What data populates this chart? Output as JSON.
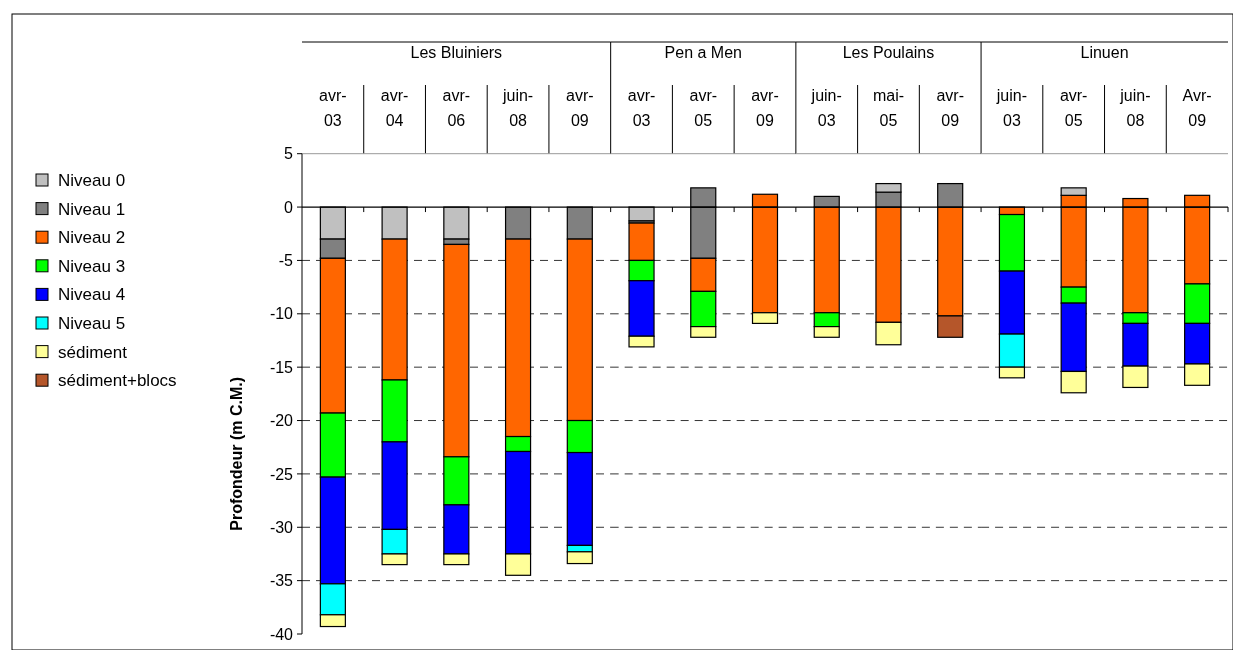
{
  "chart_data": [
    {
      "type": "bar",
      "title": "Les Bluiniers",
      "categories": [
        "avr-03",
        "avr-04",
        "avr-06",
        "juin-08",
        "avr-09"
      ],
      "stacked": true,
      "ylabel": "Profondeur (m C.M.)",
      "ylim": [
        -40,
        5
      ],
      "yticks": [
        -40,
        -35,
        -30,
        -25,
        -20,
        -15,
        -10,
        -5,
        0,
        5
      ],
      "grid": "y",
      "legend": "left",
      "series": [
        {
          "name": "Niveau 0",
          "color": "#c0c0c0",
          "values": [
            -3.0,
            -3.0,
            -3.0,
            null,
            null
          ]
        },
        {
          "name": "Niveau 1",
          "color": "#808080",
          "values": [
            -1.8,
            null,
            -0.5,
            -3.0,
            -3.0
          ]
        },
        {
          "name": "Niveau 2",
          "color": "#ff6600",
          "values": [
            -14.5,
            -13.2,
            -19.9,
            -18.5,
            -17.0
          ]
        },
        {
          "name": "Niveau 3",
          "color": "#00ff00",
          "values": [
            -6.0,
            -5.8,
            -4.5,
            -1.4,
            -3.0
          ]
        },
        {
          "name": "Niveau 4",
          "color": "#0000ff",
          "values": [
            -10.0,
            -8.2,
            -4.6,
            -9.6,
            -8.7
          ]
        },
        {
          "name": "Niveau 5",
          "color": "#00ffff",
          "values": [
            -2.9,
            -2.3,
            null,
            null,
            -0.6
          ]
        },
        {
          "name": "sédiment",
          "color": "#ffff99",
          "values": [
            -1.1,
            -1.0,
            -1.0,
            -2.0,
            -1.1
          ]
        },
        {
          "name": "sédiment+blocs",
          "color": "#b5562a",
          "values": [
            null,
            null,
            null,
            null,
            null
          ]
        }
      ]
    },
    {
      "type": "bar",
      "title": "Pen a Men",
      "categories": [
        "avr-03",
        "avr-05",
        "avr-09"
      ],
      "stacked": true,
      "ylim": [
        -40,
        5
      ],
      "yticks": [
        -40,
        -35,
        -30,
        -25,
        -20,
        -15,
        -10,
        -5,
        0,
        5
      ],
      "grid": "y",
      "tick_labels": "x",
      "series": [
        {
          "color": "#c0c0c0",
          "values": [
            -1.3,
            null,
            null
          ]
        },
        {
          "color": "#808080",
          "values": [
            -0.2,
            -4.8,
            null
          ]
        },
        {
          "color": "#ff6600",
          "values": [
            -3.5,
            -3.1,
            -9.9
          ]
        },
        {
          "color": "#00ff00",
          "values": [
            -1.9,
            -3.3,
            null
          ]
        },
        {
          "color": "#0000ff",
          "values": [
            -5.2,
            null,
            null
          ]
        },
        {
          "color": "#ffff99",
          "values": [
            -1.0,
            -1.0,
            -1.0
          ]
        },
        {
          "color": "#808080",
          "values": [
            null,
            1.8,
            null
          ]
        },
        {
          "color": "#ff6600",
          "values": [
            null,
            null,
            1.2
          ]
        }
      ]
    },
    {
      "type": "bar",
      "title": "Les Poulains",
      "categories": [
        "juin-03",
        "mai-05",
        "avr-09"
      ],
      "stacked": true,
      "ylim": [
        -40,
        5
      ],
      "yticks": [
        -40,
        -35,
        -30,
        -25,
        -20,
        -15,
        -10,
        -5,
        0,
        5
      ],
      "grid": "y",
      "tick_labels": "x",
      "series": [
        {
          "color": "#ff6600",
          "values": [
            -9.9,
            -10.8,
            -10.2
          ]
        },
        {
          "color": "#00ff00",
          "values": [
            -1.3,
            null,
            null
          ]
        },
        {
          "color": "#ffff99",
          "values": [
            -1.0,
            -2.1,
            null
          ]
        },
        {
          "color": "#b5562a",
          "values": [
            null,
            null,
            -2.0
          ]
        },
        {
          "color": "#808080",
          "values": [
            1.0,
            1.4,
            2.2
          ]
        },
        {
          "color": "#c0c0c0",
          "values": [
            null,
            0.8,
            null
          ]
        }
      ]
    },
    {
      "type": "bar",
      "title": "Linuen",
      "categories": [
        "juin-03",
        "avr-05",
        "juin-08",
        "Avr-09"
      ],
      "stacked": true,
      "ylim": [
        -40,
        5
      ],
      "yticks": [
        -40,
        -35,
        -30,
        -25,
        -20,
        -15,
        -10,
        -5,
        0,
        5
      ],
      "grid": "y",
      "tick_labels": "x",
      "series": [
        {
          "color": "#ff6600",
          "values": [
            -0.7,
            -7.5,
            -9.9,
            -7.2
          ]
        },
        {
          "color": "#00ff00",
          "values": [
            -5.3,
            -1.5,
            -1.0,
            -3.7
          ]
        },
        {
          "color": "#0000ff",
          "values": [
            -5.9,
            -6.4,
            -4.0,
            -3.8
          ]
        },
        {
          "color": "#00ffff",
          "values": [
            -3.1,
            null,
            null,
            null
          ]
        },
        {
          "color": "#ffff99",
          "values": [
            -1.0,
            -2.0,
            -2.0,
            -2.0
          ]
        },
        {
          "color": "#ff6600",
          "values": [
            null,
            1.1,
            0.8,
            1.1
          ]
        },
        {
          "color": "#c0c0c0",
          "values": [
            null,
            0.7,
            null,
            null
          ]
        }
      ]
    }
  ]
}
